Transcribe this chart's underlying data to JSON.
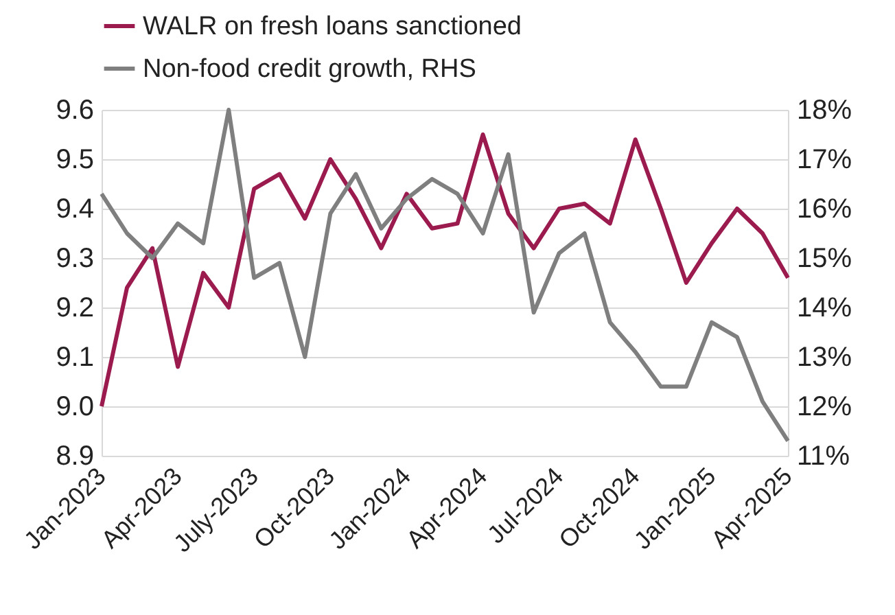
{
  "chart_data": {
    "type": "line",
    "categories": [
      "Jan-2023",
      null,
      null,
      "Apr-2023",
      null,
      null,
      "July-2023",
      null,
      null,
      "Oct-2023",
      null,
      null,
      "Jan-2024",
      null,
      null,
      "Apr-2024",
      null,
      null,
      "Jul-2024",
      null,
      null,
      "Oct-2024",
      null,
      null,
      "Jan-2025",
      null,
      null,
      "Apr-2025"
    ],
    "series": [
      {
        "name": "WALR on fresh loans sanctioned",
        "color": "#9b1b4f",
        "values": [
          9.0,
          9.24,
          9.32,
          9.08,
          9.27,
          9.2,
          9.44,
          9.47,
          9.38,
          9.5,
          9.42,
          9.32,
          9.43,
          9.36,
          9.37,
          9.55,
          9.39,
          9.32,
          9.4,
          9.41,
          9.37,
          9.54,
          9.4,
          9.25,
          9.33,
          9.4,
          9.35,
          9.26
        ]
      },
      {
        "name": "Non-food credit growth, RHS",
        "color": "#7f7f7f",
        "axis": "y2",
        "values": [
          16.3,
          15.5,
          15.0,
          15.7,
          15.3,
          18.0,
          14.6,
          14.9,
          13.0,
          15.9,
          16.7,
          15.6,
          16.2,
          16.6,
          16.3,
          15.5,
          17.1,
          13.9,
          15.1,
          15.5,
          13.7,
          13.1,
          12.4,
          12.4,
          13.7,
          13.4,
          12.1,
          11.3
        ]
      }
    ],
    "ylim": [
      8.9,
      9.6
    ],
    "yticks": [
      {
        "value": 8.9,
        "label": "8.9"
      },
      {
        "value": 9.0,
        "label": "9.0"
      },
      {
        "value": 9.1,
        "label": "9.1"
      },
      {
        "value": 9.2,
        "label": "9.2"
      },
      {
        "value": 9.3,
        "label": "9.3"
      },
      {
        "value": 9.4,
        "label": "9.4"
      },
      {
        "value": 9.5,
        "label": "9.5"
      },
      {
        "value": 9.6,
        "label": "9.6"
      }
    ],
    "y2lim": [
      11,
      18
    ],
    "y2ticks": [
      {
        "value": 11,
        "label": "11%"
      },
      {
        "value": 12,
        "label": "12%"
      },
      {
        "value": 13,
        "label": "13%"
      },
      {
        "value": 14,
        "label": "14%"
      },
      {
        "value": 15,
        "label": "15%"
      },
      {
        "value": 16,
        "label": "16%"
      },
      {
        "value": 17,
        "label": "17%"
      },
      {
        "value": 18,
        "label": "18%"
      }
    ],
    "grid": "y",
    "legend": "top"
  }
}
